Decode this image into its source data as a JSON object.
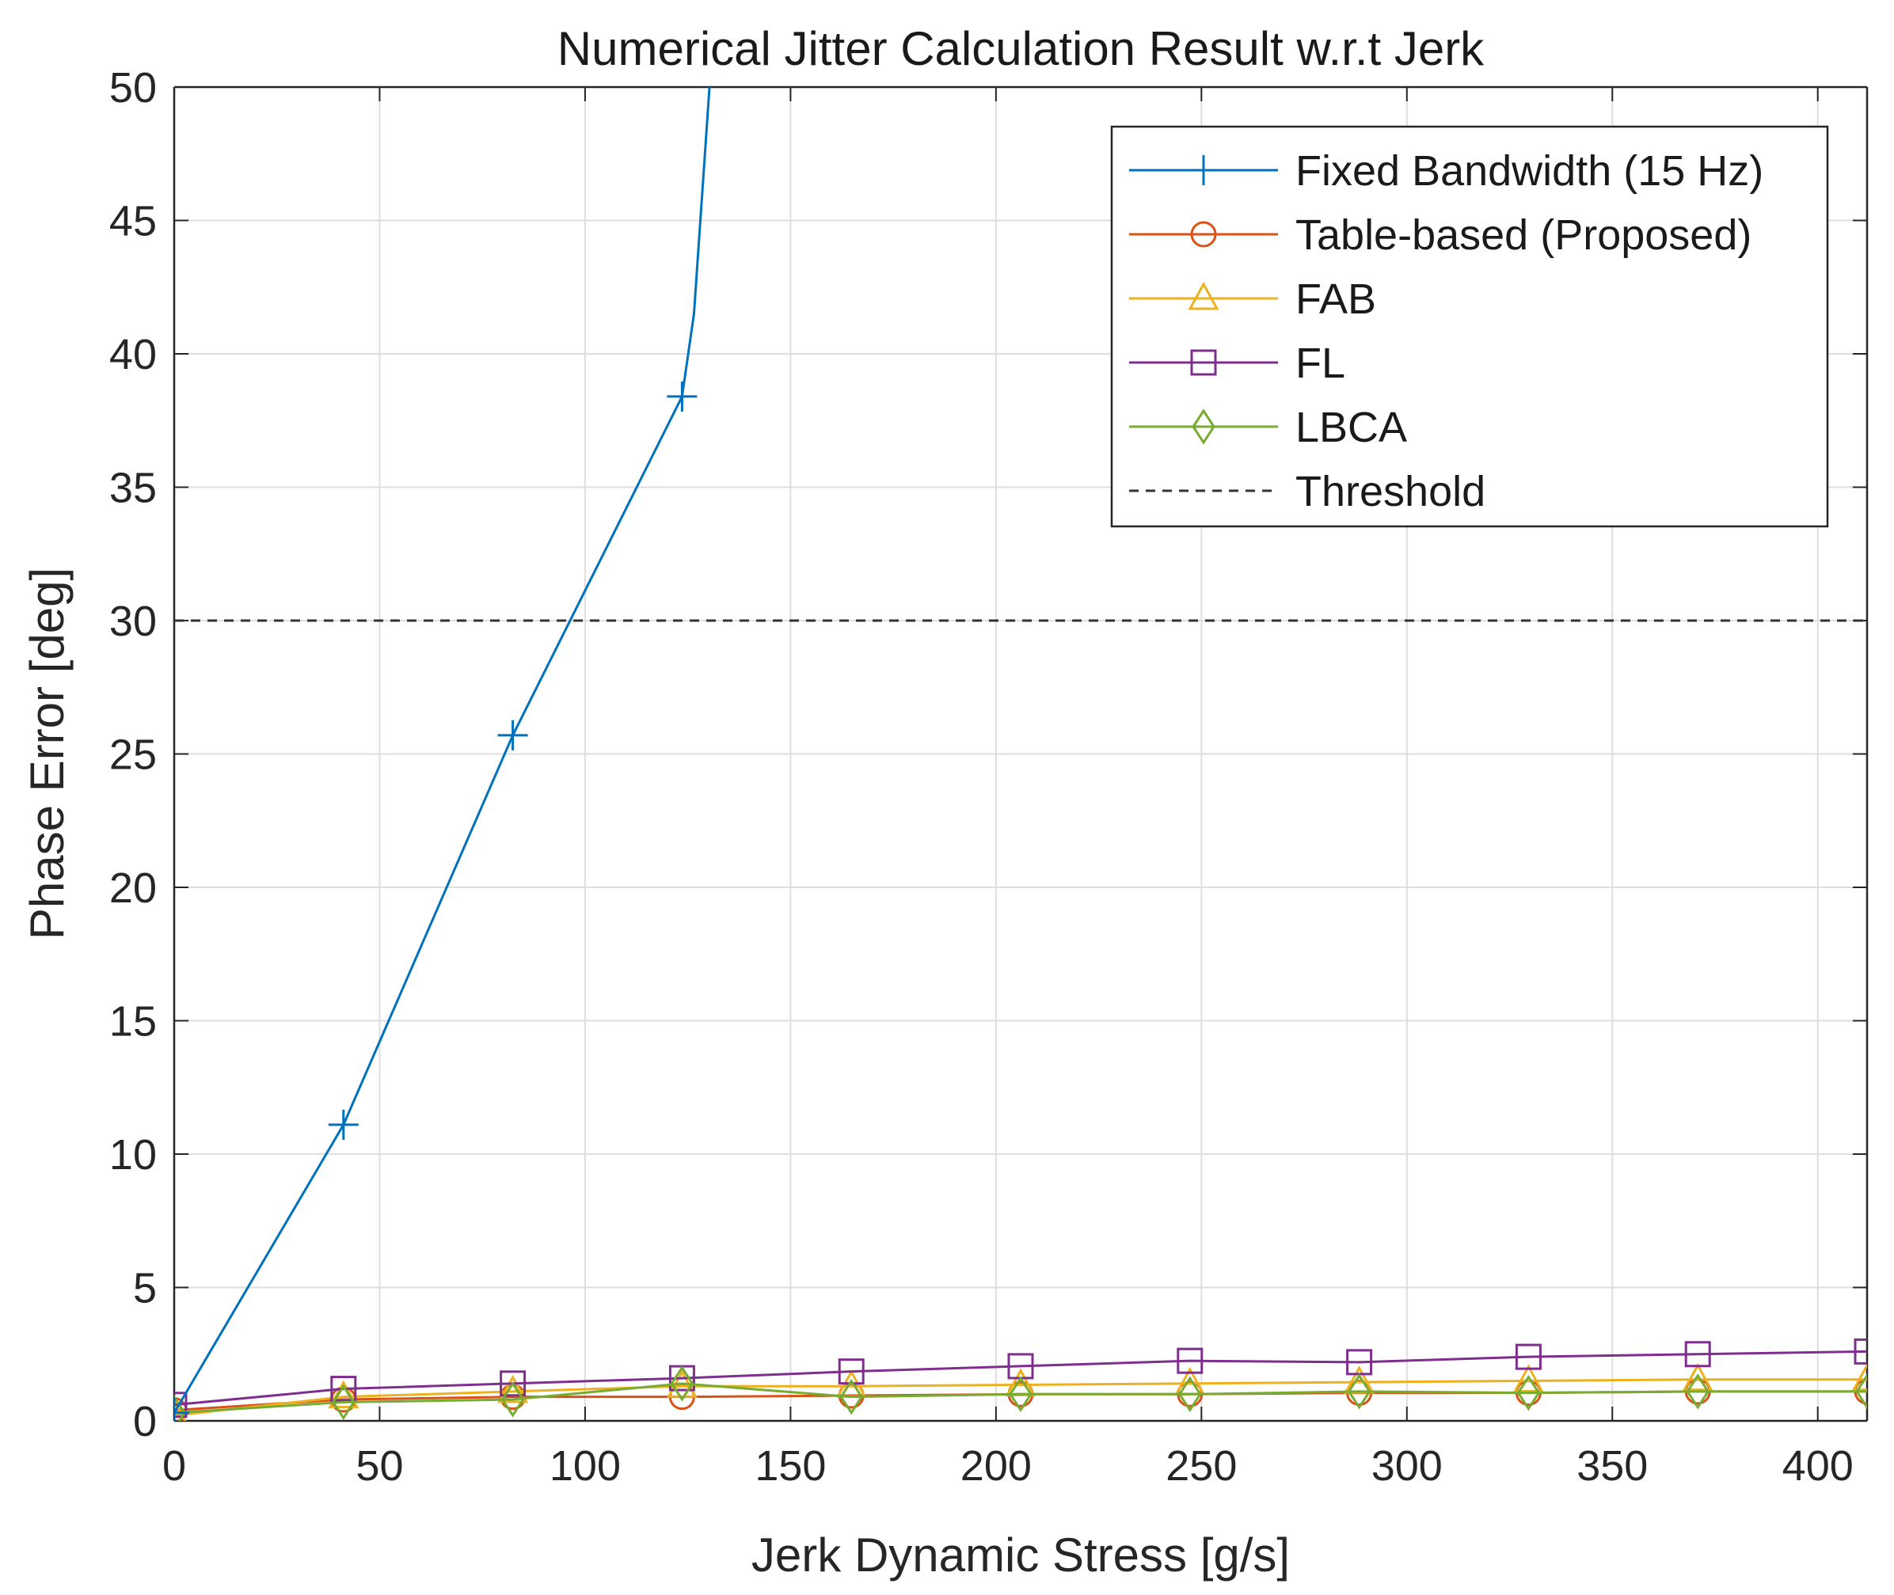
{
  "chart_data": {
    "type": "line",
    "title": "Numerical Jitter Calculation Result w.r.t Jerk",
    "xlabel": "Jerk Dynamic Stress [g/s]",
    "ylabel": "Phase Error [deg]",
    "xlim": [
      0,
      412
    ],
    "ylim": [
      0,
      50
    ],
    "xticks": [
      0,
      50,
      100,
      150,
      200,
      250,
      300,
      350,
      400
    ],
    "yticks": [
      0,
      5,
      10,
      15,
      20,
      25,
      30,
      35,
      40,
      45,
      50
    ],
    "grid": true,
    "legend_position": "top-right",
    "threshold": 30,
    "series": [
      {
        "name": "Fixed Bandwidth (15 Hz)",
        "color": "#0072BD",
        "marker": "plus",
        "x": [
          0,
          41.2,
          82.4,
          123.6
        ],
        "y": [
          0.3,
          11.1,
          25.7,
          38.4
        ],
        "line_x": [
          0,
          41.2,
          82.4,
          123.6,
          126.5,
          128.5,
          130.5
        ],
        "line_y": [
          0.3,
          11.1,
          25.7,
          38.4,
          41.5,
          46.0,
          50.5
        ]
      },
      {
        "name": "Table-based (Proposed)",
        "color": "#D95319",
        "marker": "circle",
        "x": [
          0,
          41.2,
          82.4,
          123.6,
          164.8,
          206,
          247.2,
          288.4,
          329.6,
          370.8,
          412
        ],
        "y": [
          0.4,
          0.8,
          0.9,
          0.9,
          0.95,
          1.0,
          1.0,
          1.05,
          1.05,
          1.1,
          1.1
        ]
      },
      {
        "name": "FAB",
        "color": "#EDB120",
        "marker": "triangle",
        "x": [
          0,
          41.2,
          82.4,
          123.6,
          164.8,
          206,
          247.2,
          288.4,
          329.6,
          370.8,
          412
        ],
        "y": [
          0.2,
          0.9,
          1.1,
          1.3,
          1.3,
          1.35,
          1.4,
          1.45,
          1.5,
          1.55,
          1.55
        ]
      },
      {
        "name": "FL",
        "color": "#7E2F8E",
        "marker": "square",
        "x": [
          0,
          41.2,
          82.4,
          123.6,
          164.8,
          206,
          247.2,
          288.4,
          329.6,
          370.8,
          412
        ],
        "y": [
          0.6,
          1.2,
          1.4,
          1.6,
          1.85,
          2.05,
          2.25,
          2.2,
          2.4,
          2.5,
          2.6
        ]
      },
      {
        "name": "LBCA",
        "color": "#77AC30",
        "marker": "diamond",
        "x": [
          0,
          41.2,
          82.4,
          123.6,
          164.8,
          206,
          247.2,
          288.4,
          329.6,
          370.8,
          412
        ],
        "y": [
          0.3,
          0.7,
          0.8,
          1.4,
          0.9,
          1.0,
          1.0,
          1.1,
          1.05,
          1.1,
          1.1
        ]
      }
    ],
    "threshold_label": "Threshold"
  }
}
